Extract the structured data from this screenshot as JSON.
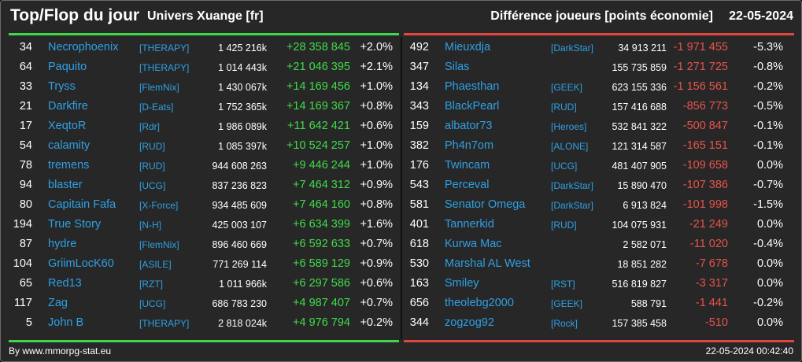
{
  "header": {
    "title": "Top/Flop du jour",
    "universe": "Univers Xuange [fr]",
    "metric": "Différence joueurs [points économie]",
    "date": "22-05-2024"
  },
  "colors": {
    "top": "#41d64a",
    "flop": "#e0473e",
    "name": "#2fa0e4"
  },
  "top": [
    {
      "rank": "34",
      "name": "Necrophoenix",
      "tag": "[THERAPY]",
      "points": "1 425 216k",
      "diff": "+28 358 845",
      "pct": "+2.0%"
    },
    {
      "rank": "64",
      "name": "Paquito",
      "tag": "[THERAPY]",
      "points": "1 014 443k",
      "diff": "+21 046 395",
      "pct": "+2.1%"
    },
    {
      "rank": "33",
      "name": "Tryss",
      "tag": "[FlemNix]",
      "points": "1 430 067k",
      "diff": "+14 169 456",
      "pct": "+1.0%"
    },
    {
      "rank": "21",
      "name": "Darkfire",
      "tag": "[D-Eats]",
      "points": "1 752 365k",
      "diff": "+14 169 367",
      "pct": "+0.8%"
    },
    {
      "rank": "17",
      "name": "XeqtoR",
      "tag": "[Rdr]",
      "points": "1 986 089k",
      "diff": "+11 642 421",
      "pct": "+0.6%"
    },
    {
      "rank": "54",
      "name": "calamity",
      "tag": "[RUD]",
      "points": "1 085 397k",
      "diff": "+10 524 257",
      "pct": "+1.0%"
    },
    {
      "rank": "78",
      "name": "tremens",
      "tag": "[RUD]",
      "points": "944 608 263",
      "diff": "+9 446 244",
      "pct": "+1.0%"
    },
    {
      "rank": "94",
      "name": "blaster",
      "tag": "[UCG]",
      "points": "837 236 823",
      "diff": "+7 464 312",
      "pct": "+0.9%"
    },
    {
      "rank": "80",
      "name": "Capitain Fafa",
      "tag": "[X-Force]",
      "points": "934 485 609",
      "diff": "+7 464 160",
      "pct": "+0.8%"
    },
    {
      "rank": "194",
      "name": "True Story",
      "tag": "[N-H]",
      "points": "425 003 107",
      "diff": "+6 634 399",
      "pct": "+1.6%"
    },
    {
      "rank": "87",
      "name": "hydre",
      "tag": "[FlemNix]",
      "points": "896 460 669",
      "diff": "+6 592 633",
      "pct": "+0.7%"
    },
    {
      "rank": "104",
      "name": "GriimLocK60",
      "tag": "[ASILE]",
      "points": "771 269 114",
      "diff": "+6 589 129",
      "pct": "+0.9%"
    },
    {
      "rank": "65",
      "name": "Red13",
      "tag": "[RZT]",
      "points": "1 011 966k",
      "diff": "+6 297 586",
      "pct": "+0.6%"
    },
    {
      "rank": "117",
      "name": "Zag",
      "tag": "[UCG]",
      "points": "686 783 230",
      "diff": "+4 987 407",
      "pct": "+0.7%"
    },
    {
      "rank": "5",
      "name": "John B",
      "tag": "[THERAPY]",
      "points": "2 818 024k",
      "diff": "+4 976 794",
      "pct": "+0.2%"
    }
  ],
  "flop": [
    {
      "rank": "492",
      "name": "Mieuxdja",
      "tag": "[DarkStar]",
      "points": "34 913 211",
      "diff": "-1 971 455",
      "pct": "-5.3%"
    },
    {
      "rank": "347",
      "name": "Silas",
      "tag": "",
      "points": "155 735 859",
      "diff": "-1 271 725",
      "pct": "-0.8%"
    },
    {
      "rank": "134",
      "name": "Phaesthan",
      "tag": "[GEEK]",
      "points": "623 155 336",
      "diff": "-1 156 561",
      "pct": "-0.2%"
    },
    {
      "rank": "343",
      "name": "BlackPearl",
      "tag": "[RUD]",
      "points": "157 416 688",
      "diff": "-856 773",
      "pct": "-0.5%"
    },
    {
      "rank": "159",
      "name": "albator73",
      "tag": "[Heroes]",
      "points": "532 841 322",
      "diff": "-500 847",
      "pct": "-0.1%"
    },
    {
      "rank": "382",
      "name": "Ph4n7om",
      "tag": "[ALONE]",
      "points": "121 314 587",
      "diff": "-165 151",
      "pct": "-0.1%"
    },
    {
      "rank": "176",
      "name": "Twincam",
      "tag": "[UCG]",
      "points": "481 407 905",
      "diff": "-109 658",
      "pct": "0.0%"
    },
    {
      "rank": "543",
      "name": "Perceval",
      "tag": "[DarkStar]",
      "points": "15 890 470",
      "diff": "-107 386",
      "pct": "-0.7%"
    },
    {
      "rank": "581",
      "name": "Senator Omega",
      "tag": "[DarkStar]",
      "points": "6 913 824",
      "diff": "-101 998",
      "pct": "-1.5%"
    },
    {
      "rank": "401",
      "name": "Tannerkid",
      "tag": "[RUD]",
      "points": "104 075 931",
      "diff": "-21 249",
      "pct": "0.0%"
    },
    {
      "rank": "618",
      "name": "Kurwa Mac",
      "tag": "",
      "points": "2 582 071",
      "diff": "-11 020",
      "pct": "-0.4%"
    },
    {
      "rank": "530",
      "name": "Marshal AL West",
      "tag": "",
      "points": "18 851 282",
      "diff": "-7 678",
      "pct": "0.0%"
    },
    {
      "rank": "163",
      "name": "Smiley",
      "tag": "[RST]",
      "points": "516 819 827",
      "diff": "-3 317",
      "pct": "0.0%"
    },
    {
      "rank": "656",
      "name": "theolebg2000",
      "tag": "[GEEK]",
      "points": "588 791",
      "diff": "-1 441",
      "pct": "-0.2%"
    },
    {
      "rank": "344",
      "name": "zogzog92",
      "tag": "[Rock]",
      "points": "157 385 458",
      "diff": "-510",
      "pct": "0.0%"
    }
  ],
  "footer": {
    "source": "By www.mmorpg-stat.eu",
    "timestamp": "22-05-2024 00:42:40"
  }
}
